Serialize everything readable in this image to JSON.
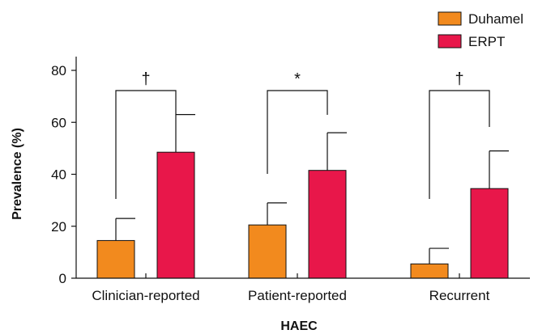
{
  "chart_data": {
    "type": "bar",
    "title": "",
    "xlabel": "HAEC",
    "ylabel": "Prevalence (%)",
    "ylim": [
      0,
      80
    ],
    "yticks": [
      0,
      20,
      40,
      60,
      80
    ],
    "categories": [
      "Clinician-reported",
      "Patient-reported",
      "Recurrent"
    ],
    "series": [
      {
        "name": "Duhamel",
        "color": "#f28a1e",
        "values": [
          14.5,
          20.5,
          5.5
        ],
        "error_upper": [
          23,
          29,
          11.5
        ]
      },
      {
        "name": "ERPT",
        "color": "#e8174a",
        "values": [
          48.5,
          41.5,
          34.5
        ],
        "error_upper": [
          63,
          56,
          49
        ]
      }
    ],
    "significance": [
      "†",
      "*",
      "†"
    ],
    "legend_position": "top-right",
    "grid": false
  }
}
